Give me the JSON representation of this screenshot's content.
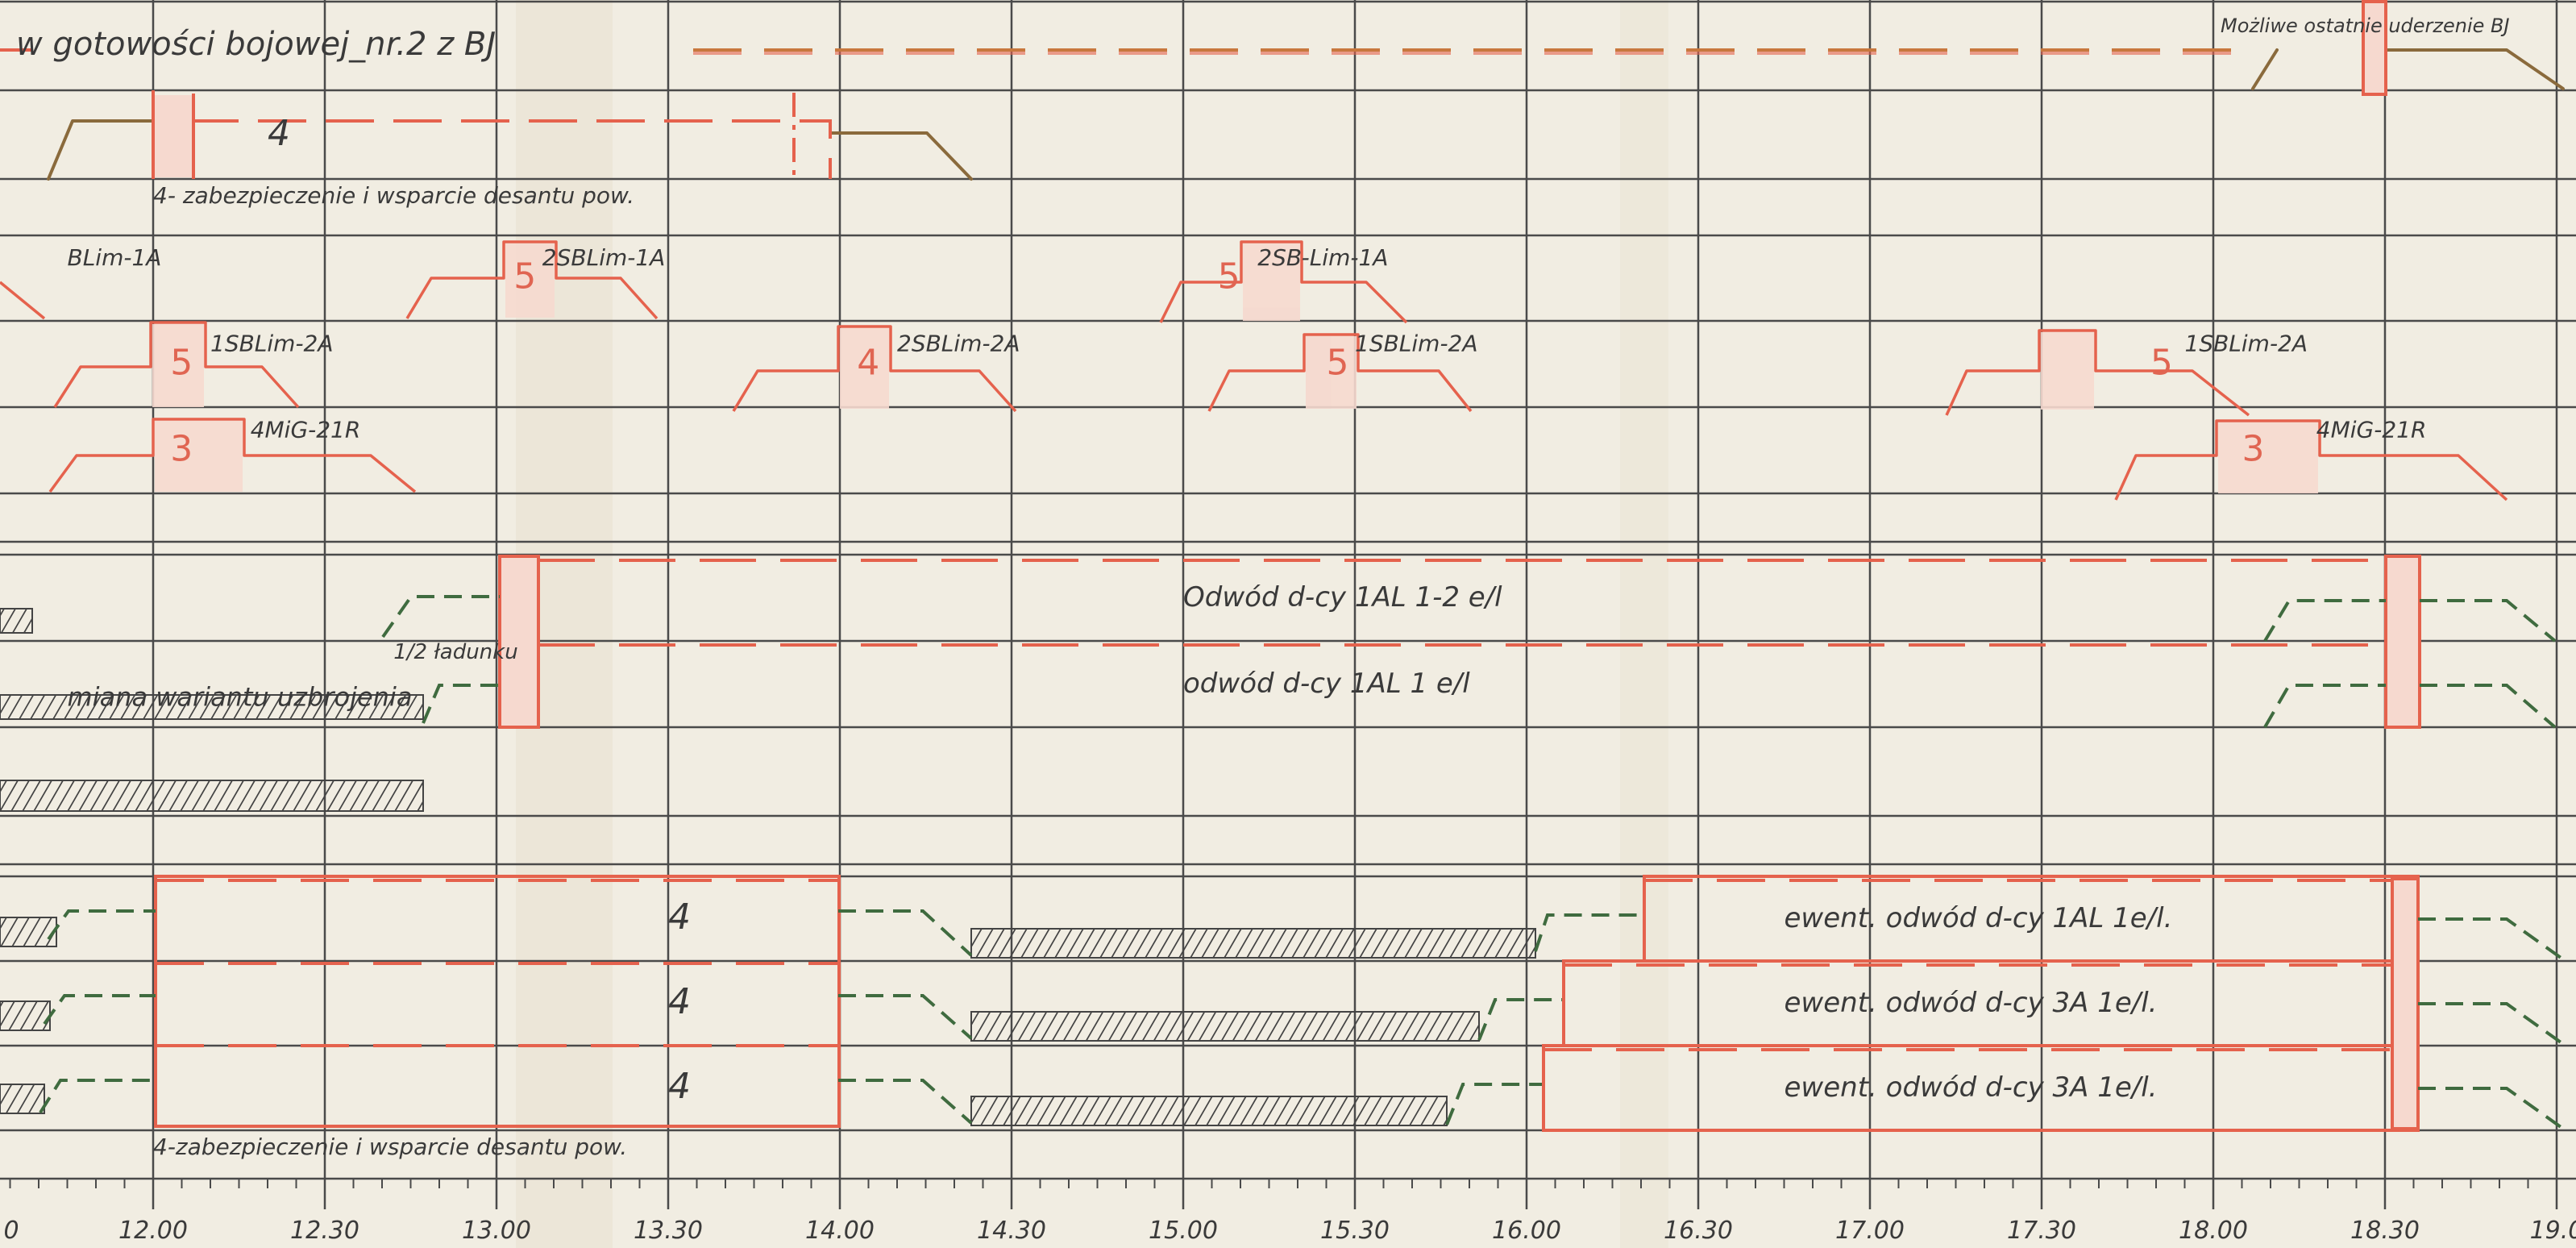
{
  "time_ticks": [
    "0",
    "12.00",
    "12.30",
    "13.00",
    "13.30",
    "14.00",
    "14.30",
    "15.00",
    "15.30",
    "16.00",
    "16.30",
    "17.00",
    "17.30",
    "18.00",
    "18.30",
    "19.0"
  ],
  "time_range": {
    "start": "11:45",
    "end": "19:00",
    "minor_step_minutes": 5
  },
  "colors": {
    "paper": "#f1ede2",
    "grid": "#4a4a4a",
    "duty_red": "#e5624d",
    "duty_fill": "#f6d9cf",
    "standby_brown": "#8a6a3c",
    "standby_green": "#3f6b3f",
    "text": "#3a3a3a"
  },
  "header": {
    "readiness_label": "w gotowości bojowej_nr.2 z BJ",
    "last_strike_label": "Możliwe ostatnie uderzenie BJ"
  },
  "rows": [
    {
      "id": "readiness",
      "annotations": []
    },
    {
      "id": "group-4-top",
      "annotations": [
        {
          "text": "4",
          "time": "12:20",
          "kind": "count"
        },
        {
          "text": "4- zabezpieczenie i wsparcie desantu pow.",
          "time": "12:00",
          "kind": "note"
        }
      ]
    },
    {
      "id": "sb-lim-1a",
      "annotations": [
        {
          "text": "BLim-1A",
          "time": "11:45",
          "kind": "label"
        },
        {
          "text": "5",
          "time": "13:03",
          "kind": "count"
        },
        {
          "text": "2SBLim-1A",
          "time": "13:08",
          "kind": "label"
        },
        {
          "text": "5",
          "time": "15:06",
          "kind": "count"
        },
        {
          "text": "2SB-Lim-1A",
          "time": "15:13",
          "kind": "label"
        }
      ]
    },
    {
      "id": "sb-lim-2a",
      "annotations": [
        {
          "text": "5",
          "time": "12:03",
          "kind": "count"
        },
        {
          "text": "1SBLim-2A",
          "time": "12:10",
          "kind": "label"
        },
        {
          "text": "4",
          "time": "14:03",
          "kind": "count"
        },
        {
          "text": "2SBLim-2A",
          "time": "14:10",
          "kind": "label"
        },
        {
          "text": "5",
          "time": "15:25",
          "kind": "count"
        },
        {
          "text": "1SBLim-2A",
          "time": "15:30",
          "kind": "label"
        },
        {
          "text": "5",
          "time": "17:49",
          "kind": "count"
        },
        {
          "text": "1SBLim-2A",
          "time": "17:55",
          "kind": "label"
        }
      ]
    },
    {
      "id": "mig-21r",
      "annotations": [
        {
          "text": "3",
          "time": "12:03",
          "kind": "count"
        },
        {
          "text": "4MiG-21R",
          "time": "12:17",
          "kind": "label"
        },
        {
          "text": "3",
          "time": "18:05",
          "kind": "count"
        },
        {
          "text": "4MiG-21R",
          "time": "18:18",
          "kind": "label"
        }
      ]
    },
    {
      "id": "spacer",
      "annotations": []
    },
    {
      "id": "reserve-1-2",
      "annotations": [
        {
          "text": "Odwód d-cy 1AL 1-2 e/l",
          "time": "15:00",
          "kind": "label"
        }
      ]
    },
    {
      "id": "reserve-1",
      "annotations": [
        {
          "text": "1/2 ładunku",
          "time": "12:42",
          "kind": "note"
        },
        {
          "text": "miana wariantu uzbrojenia",
          "time": "11:45",
          "kind": "note"
        },
        {
          "text": "odwód d-cy 1AL 1 e/l",
          "time": "15:00",
          "kind": "label"
        }
      ]
    },
    {
      "id": "rearm",
      "annotations": []
    },
    {
      "id": "empty",
      "annotations": []
    },
    {
      "id": "group-4-a",
      "annotations": [
        {
          "text": "4",
          "time": "13:30",
          "kind": "count"
        },
        {
          "text": "ewent. odwód d-cy 1AL 1e/l.",
          "time": "16:45",
          "kind": "label"
        }
      ]
    },
    {
      "id": "group-4-b",
      "annotations": [
        {
          "text": "4",
          "time": "13:30",
          "kind": "count"
        },
        {
          "text": "ewent. odwód d-cy 3A 1e/l.",
          "time": "16:45",
          "kind": "label"
        }
      ]
    },
    {
      "id": "group-4-c",
      "annotations": [
        {
          "text": "4",
          "time": "13:30",
          "kind": "count"
        },
        {
          "text": "ewent. odwód d-cy 3A 1e/l.",
          "time": "16:45",
          "kind": "label"
        },
        {
          "text": "4-zabezpieczenie i wsparcie desantu pow.",
          "time": "12:00",
          "kind": "note"
        }
      ]
    }
  ]
}
